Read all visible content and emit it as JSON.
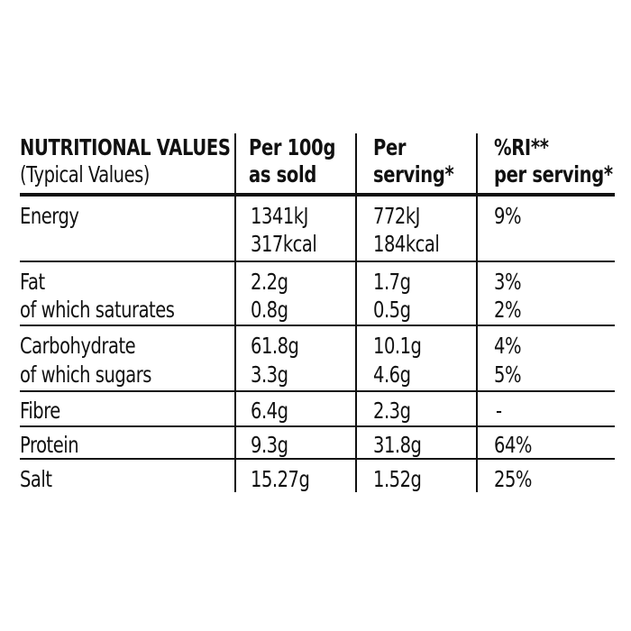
{
  "header": {
    "col1_line1": "NUTRITIONAL VALUES",
    "col1_line2": "(Typical Values)",
    "col2_line1": "Per 100g",
    "col2_line2": "as sold",
    "col3_line1": "Per",
    "col3_line2": "serving*",
    "col4_line1": "%RI**",
    "col4_line2": "per serving*"
  },
  "rows": [
    {
      "label": [
        "Energy"
      ],
      "per100": [
        "1341kJ",
        "317kcal"
      ],
      "serving": [
        "772kJ",
        "184kcal"
      ],
      "ri": [
        "9%"
      ]
    },
    {
      "label": [
        "Fat",
        "of which saturates"
      ],
      "per100": [
        "2.2g",
        "0.8g"
      ],
      "serving": [
        "1.7g",
        "0.5g"
      ],
      "ri": [
        "3%",
        "2%"
      ]
    },
    {
      "label": [
        "Carbohydrate",
        "of which sugars"
      ],
      "per100": [
        "61.8g",
        "3.3g"
      ],
      "serving": [
        "10.1g",
        "4.6g"
      ],
      "ri": [
        "4%",
        "5%"
      ]
    },
    {
      "label": [
        "Fibre"
      ],
      "per100": [
        "6.4g"
      ],
      "serving": [
        "2.3g"
      ],
      "ri": [
        "-"
      ]
    },
    {
      "label": [
        "Protein"
      ],
      "per100": [
        "9.3g"
      ],
      "serving": [
        "31.8g"
      ],
      "ri": [
        "64%"
      ]
    },
    {
      "label": [
        "Salt"
      ],
      "per100": [
        "15.27g"
      ],
      "serving": [
        "1.52g"
      ],
      "ri": [
        "25%"
      ]
    }
  ]
}
